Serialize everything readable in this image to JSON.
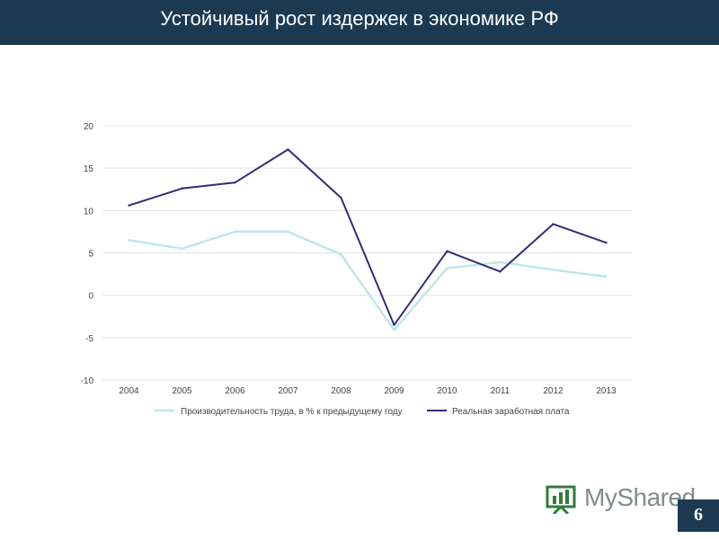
{
  "header": {
    "title": "Устойчивый рост издержек в экономике РФ"
  },
  "footer": {
    "watermark_text": "MyShared",
    "page_number": "6"
  },
  "colors": {
    "header_bg": "#1b3a52",
    "productivity": "#bfe6ea",
    "wages": "#2e2d7a"
  },
  "chart_data": {
    "type": "line",
    "title": "",
    "xlabel": "",
    "ylabel": "",
    "categories": [
      "2004",
      "2005",
      "2006",
      "2007",
      "2008",
      "2009",
      "2010",
      "2011",
      "2012",
      "2013"
    ],
    "y_ticks": [
      "20",
      "15",
      "10",
      "5",
      "0",
      "-5",
      "-10"
    ],
    "ylim": [
      -10,
      20
    ],
    "grid": true,
    "legend_position": "bottom",
    "series": [
      {
        "name": "Производительность труда, в % к предыдущему году",
        "color": "#bfe6ea",
        "values": [
          6.5,
          5.5,
          7.5,
          7.5,
          4.8,
          -4.1,
          3.2,
          3.9,
          3.0,
          2.2
        ]
      },
      {
        "name": "Реальная заработная плата",
        "color": "#2e2d7a",
        "values": [
          10.6,
          12.6,
          13.3,
          17.2,
          11.5,
          -3.5,
          5.2,
          2.8,
          8.4,
          6.2
        ]
      }
    ]
  }
}
